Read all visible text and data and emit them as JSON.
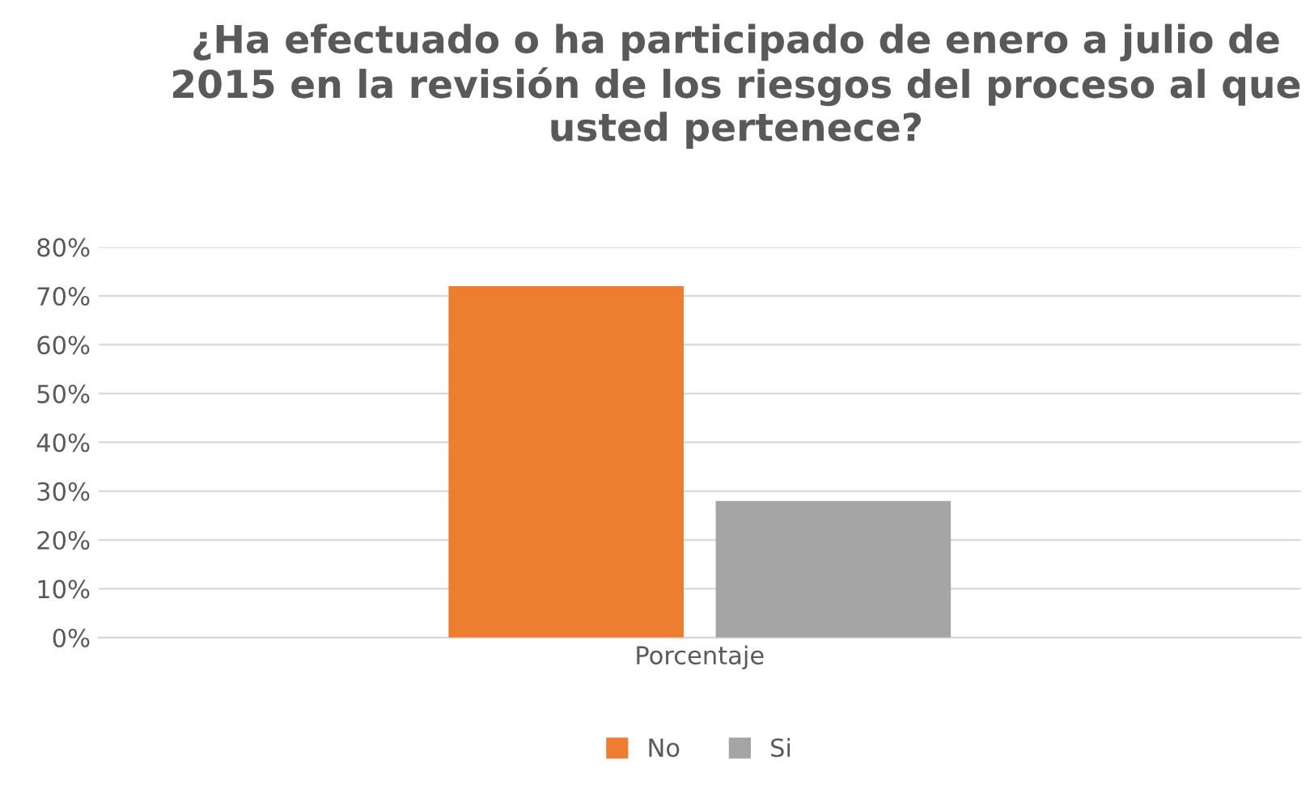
{
  "chart_data": {
    "type": "bar",
    "title": "¿Ha efectuado o ha participado de enero a julio de 2015 en la revisión de los riesgos del proceso al que usted pertenece?",
    "categories": [
      "Porcentaje"
    ],
    "series": [
      {
        "name": "No",
        "color": "#ed7d31",
        "values": [
          72
        ]
      },
      {
        "name": "Si",
        "color": "#a5a5a5",
        "values": [
          28
        ]
      }
    ],
    "ylim": [
      0,
      80
    ],
    "yticks": [
      {
        "value": 0,
        "label": "0%"
      },
      {
        "value": 10,
        "label": "10%"
      },
      {
        "value": 20,
        "label": "20%"
      },
      {
        "value": 30,
        "label": "30%"
      },
      {
        "value": 40,
        "label": "40%"
      },
      {
        "value": 50,
        "label": "50%"
      },
      {
        "value": 60,
        "label": "60%"
      },
      {
        "value": 70,
        "label": "70%"
      },
      {
        "value": 80,
        "label": "80%"
      }
    ],
    "grid": "y",
    "legend": "bottom"
  }
}
